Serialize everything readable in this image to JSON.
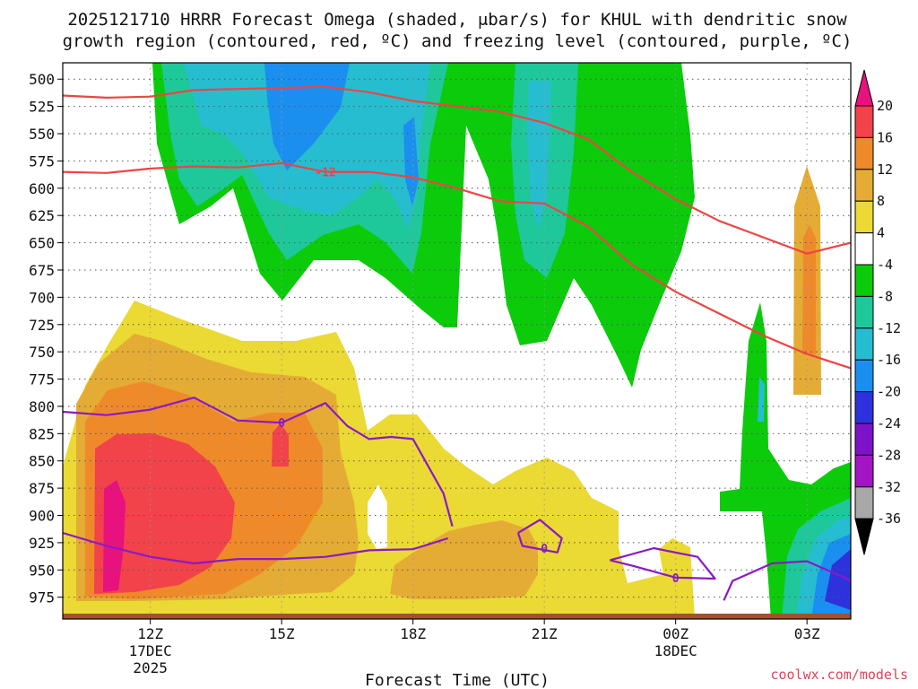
{
  "chart_data": {
    "type": "heatmap",
    "title_line1": "2025121710 HRRR Forecast Omega (shaded, μbar/s) for KHUL with dendritic snow",
    "title_line2": "growth region (contoured, red, ºC) and freezing level (contoured, purple, ºC)",
    "xlabel": "Forecast Time (UTC)",
    "credit": "coolwx.com/models",
    "y_ticks": [
      500,
      525,
      550,
      575,
      600,
      625,
      650,
      675,
      700,
      725,
      750,
      775,
      800,
      825,
      850,
      875,
      900,
      925,
      950,
      975
    ],
    "ylim": [
      485,
      995
    ],
    "xlim": [
      10.0,
      28.0
    ],
    "x_ticks": [
      {
        "hour": 12,
        "lines": [
          "12Z",
          "17DEC",
          "2025"
        ]
      },
      {
        "hour": 15,
        "lines": [
          "15Z"
        ]
      },
      {
        "hour": 18,
        "lines": [
          "18Z"
        ]
      },
      {
        "hour": 21,
        "lines": [
          "21Z"
        ]
      },
      {
        "hour": 24,
        "lines": [
          "00Z",
          "18DEC"
        ]
      },
      {
        "hour": 27,
        "lines": [
          "03Z"
        ]
      }
    ],
    "grid": true,
    "colorbar": {
      "labels": [
        "20",
        "16",
        "12",
        "8",
        "4",
        "-4",
        "-8",
        "-12",
        "-16",
        "-20",
        "-24",
        "-28",
        "-32",
        "-36"
      ],
      "colors": [
        "#e8127e",
        "#f2424a",
        "#ef8a2a",
        "#e5ac35",
        "#ebd934",
        "#ffffff",
        "#0bcb0b",
        "#1fc89a",
        "#27bdd0",
        "#1a8ff0",
        "#2d32dc",
        "#7e12c8",
        "#a314c4",
        "#a8a8a8",
        "#000000"
      ]
    },
    "levels": {
      "yellow": "#ebd934",
      "orange": "#e5ac35",
      "darkorange": "#ef8a2a",
      "red": "#f2424a",
      "magenta": "#e8127e",
      "green": "#0bcb0b",
      "teal": "#1fc89a",
      "cyan": "#27bdd0",
      "blue": "#1a8ff0",
      "darkblue": "#2d32dc"
    },
    "contours": {
      "dendritic": {
        "color": "#ee4444",
        "upper_label": "",
        "lower_label": "-12",
        "upper": {
          "x": [
            10.0,
            11.0,
            12.0,
            13.0,
            14.0,
            15.0,
            16.0,
            17.0,
            18.0,
            19.0,
            20.0,
            21.0,
            22.0,
            23.0,
            24.0,
            25.0,
            26.0,
            27.0,
            28.0
          ],
          "y": [
            515,
            517,
            516,
            510,
            509,
            508,
            507,
            512,
            520,
            525,
            530,
            540,
            555,
            585,
            610,
            630,
            645,
            660,
            650
          ]
        },
        "lower": {
          "x": [
            10.0,
            11.0,
            12.0,
            13.0,
            14.0,
            15.0,
            16.0,
            17.0,
            18.0,
            19.0,
            20.0,
            21.0,
            22.0,
            23.0,
            24.0,
            25.0,
            26.0,
            27.0,
            28.0
          ],
          "y": [
            585,
            586,
            582,
            580,
            581,
            577,
            585,
            585,
            590,
            600,
            612,
            614,
            635,
            670,
            695,
            715,
            735,
            752,
            765
          ]
        }
      },
      "freezing": {
        "color": "#8b19c7",
        "label": "0",
        "upper": {
          "x": [
            10.0,
            11.0,
            12.0,
            13.0,
            14.0,
            15.0,
            16.0,
            16.5,
            17.0,
            17.5,
            18.0,
            18.7,
            18.9
          ],
          "y": [
            805,
            808,
            803,
            792,
            813,
            815,
            797,
            818,
            830,
            828,
            830,
            880,
            910
          ]
        },
        "lower": {
          "x": [
            10.0,
            11.0,
            12.0,
            13.0,
            14.0,
            15.0,
            16.0,
            17.0,
            18.0,
            18.8
          ],
          "y": [
            916,
            928,
            938,
            944,
            940,
            940,
            938,
            932,
            931,
            921
          ]
        },
        "loop1": {
          "x": [
            20.4,
            20.9,
            21.4,
            21.3,
            20.5,
            20.4
          ],
          "y": [
            916,
            904,
            921,
            934,
            928,
            916
          ]
        },
        "loop2": {
          "x": [
            22.5,
            23.5,
            24.5,
            24.9,
            24.0,
            23.0,
            22.5
          ],
          "y": [
            941,
            930,
            938,
            958,
            957,
            946,
            941
          ]
        },
        "stub": {
          "x": [
            25.1,
            25.3,
            26.2,
            27.0,
            27.8,
            28.0
          ],
          "y": [
            978,
            960,
            944,
            942,
            956,
            960
          ]
        }
      }
    }
  }
}
